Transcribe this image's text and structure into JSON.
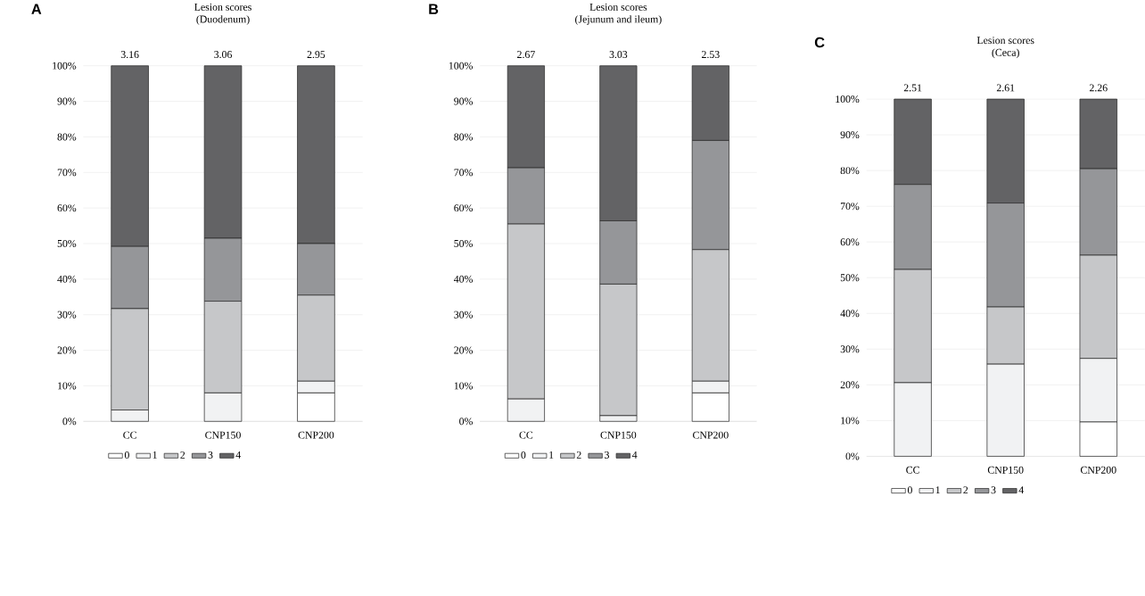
{
  "chart_data": [
    {
      "type": "bar",
      "title": "Lesion scores",
      "subtitle": "(Duodenum)",
      "stacked": true,
      "categories": [
        "CC",
        "CNP150",
        "CNP200"
      ],
      "series": [
        {
          "name": "0",
          "color": "#ffffff",
          "values": [
            0,
            0,
            8
          ]
        },
        {
          "name": "1",
          "color": "#f1f2f3",
          "values": [
            3.2,
            8,
            3.3
          ]
        },
        {
          "name": "2",
          "color": "#c6c7c9",
          "values": [
            28.5,
            25.8,
            24.2
          ]
        },
        {
          "name": "3",
          "color": "#959699",
          "values": [
            17.5,
            17.7,
            14.5
          ]
        },
        {
          "name": "4",
          "color": "#636365",
          "values": [
            50.8,
            48.5,
            50
          ]
        }
      ],
      "ylim": [
        0,
        100
      ],
      "yticks": [
        {
          "value": 0,
          "label": "0%"
        },
        {
          "value": 10,
          "label": "10%"
        },
        {
          "value": 20,
          "label": "20%"
        },
        {
          "value": 30,
          "label": "30%"
        },
        {
          "value": 40,
          "label": "40%"
        },
        {
          "value": 50,
          "label": "50%"
        },
        {
          "value": 60,
          "label": "60%"
        },
        {
          "value": 70,
          "label": "70%"
        },
        {
          "value": 80,
          "label": "80%"
        },
        {
          "value": 90,
          "label": "90%"
        },
        {
          "value": 100,
          "label": "100%"
        }
      ],
      "grid": "y",
      "legend": "bottom",
      "annotations": [
        "A",
        {
          "text": "3.16",
          "x": "CC",
          "y": 100
        },
        {
          "text": "3.06",
          "x": "CNP150",
          "y": 100
        },
        {
          "text": "2.95",
          "x": "CNP200",
          "y": 100
        }
      ]
    },
    {
      "type": "bar",
      "title": "Lesion scores",
      "subtitle": "(Jejunum and ileum)",
      "stacked": true,
      "categories": [
        "CC",
        "CNP150",
        "CNP200"
      ],
      "series": [
        {
          "name": "0",
          "color": "#ffffff",
          "values": [
            0,
            0,
            8
          ]
        },
        {
          "name": "1",
          "color": "#f1f2f3",
          "values": [
            6.3,
            1.6,
            3.3
          ]
        },
        {
          "name": "2",
          "color": "#c6c7c9",
          "values": [
            49.2,
            37,
            37
          ]
        },
        {
          "name": "3",
          "color": "#959699",
          "values": [
            15.8,
            17.8,
            30.7
          ]
        },
        {
          "name": "4",
          "color": "#636365",
          "values": [
            28.7,
            43.6,
            21
          ]
        }
      ],
      "ylim": [
        0,
        100
      ],
      "yticks": [
        {
          "value": 0,
          "label": "0%"
        },
        {
          "value": 10,
          "label": "10%"
        },
        {
          "value": 20,
          "label": "20%"
        },
        {
          "value": 30,
          "label": "30%"
        },
        {
          "value": 40,
          "label": "40%"
        },
        {
          "value": 50,
          "label": "50%"
        },
        {
          "value": 60,
          "label": "60%"
        },
        {
          "value": 70,
          "label": "70%"
        },
        {
          "value": 80,
          "label": "80%"
        },
        {
          "value": 90,
          "label": "90%"
        },
        {
          "value": 100,
          "label": "100%"
        }
      ],
      "grid": "y",
      "legend": "bottom",
      "annotations": [
        "B",
        {
          "text": "2.67",
          "x": "CC",
          "y": 100
        },
        {
          "text": "3.03",
          "x": "CNP150",
          "y": 100
        },
        {
          "text": "2.53",
          "x": "CNP200",
          "y": 100
        }
      ]
    },
    {
      "type": "bar",
      "title": "Lesion scores",
      "subtitle": "(Ceca)",
      "stacked": true,
      "categories": [
        "CC",
        "CNP150",
        "CNP200"
      ],
      "series": [
        {
          "name": "0",
          "color": "#ffffff",
          "values": [
            0,
            0,
            9.6
          ]
        },
        {
          "name": "1",
          "color": "#f1f2f3",
          "values": [
            20.6,
            25.8,
            17.8
          ]
        },
        {
          "name": "2",
          "color": "#c6c7c9",
          "values": [
            31.7,
            16,
            28.9
          ]
        },
        {
          "name": "3",
          "color": "#959699",
          "values": [
            23.8,
            29.1,
            24.2
          ]
        },
        {
          "name": "4",
          "color": "#636365",
          "values": [
            23.9,
            29.1,
            19.5
          ]
        }
      ],
      "ylim": [
        0,
        100
      ],
      "yticks": [
        {
          "value": 0,
          "label": "0%"
        },
        {
          "value": 10,
          "label": "10%"
        },
        {
          "value": 20,
          "label": "20%"
        },
        {
          "value": 30,
          "label": "30%"
        },
        {
          "value": 40,
          "label": "40%"
        },
        {
          "value": 50,
          "label": "50%"
        },
        {
          "value": 60,
          "label": "60%"
        },
        {
          "value": 70,
          "label": "70%"
        },
        {
          "value": 80,
          "label": "80%"
        },
        {
          "value": 90,
          "label": "90%"
        },
        {
          "value": 100,
          "label": "100%"
        }
      ],
      "grid": "y",
      "legend": "bottom",
      "annotations": [
        "C",
        {
          "text": "2.51",
          "x": "CC",
          "y": 100
        },
        {
          "text": "2.61",
          "x": "CNP150",
          "y": 100
        },
        {
          "text": "2.26",
          "x": "CNP200",
          "y": 100
        }
      ]
    }
  ]
}
